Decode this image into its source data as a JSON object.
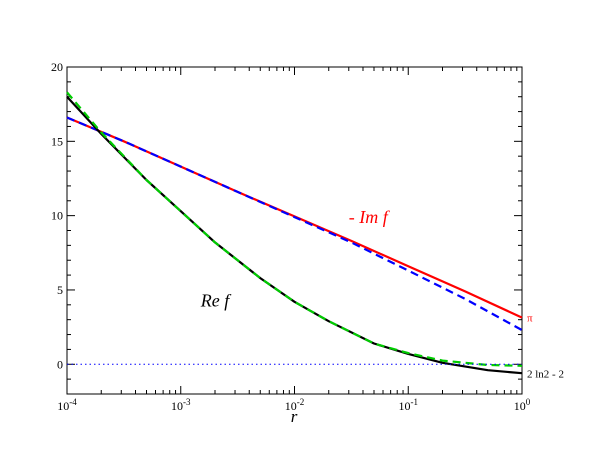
{
  "chart_data": {
    "type": "line",
    "xscale": "log",
    "xlim": [
      0.0001,
      1
    ],
    "ylim": [
      -2,
      20
    ],
    "xlabel": "r",
    "ylabel": "",
    "grid": false,
    "x_tick_labels": [
      {
        "base": "10",
        "exp": "-4",
        "value": 0.0001
      },
      {
        "base": "10",
        "exp": "-3",
        "value": 0.001
      },
      {
        "base": "10",
        "exp": "-2",
        "value": 0.01
      },
      {
        "base": "10",
        "exp": "-1",
        "value": 0.1
      },
      {
        "base": "10",
        "exp": "0",
        "value": 1
      }
    ],
    "y_tick_labels": [
      {
        "text": "0",
        "value": 0
      },
      {
        "text": "5",
        "value": 5
      },
      {
        "text": "10",
        "value": 10
      },
      {
        "text": "15",
        "value": 15
      },
      {
        "text": "20",
        "value": 20
      }
    ],
    "series": [
      {
        "name": "- Im f",
        "color": "#ff0000",
        "style": "solid",
        "x": [
          0.0001,
          0.000316,
          0.001,
          0.00316,
          0.01,
          0.0316,
          0.1,
          0.316,
          1
        ],
        "y": [
          16.6,
          15.0,
          13.3,
          11.6,
          9.95,
          8.3,
          6.6,
          4.9,
          3.14
        ]
      },
      {
        "name": "",
        "color": "#0000ff",
        "style": "dashed",
        "x": [
          0.0001,
          0.000316,
          0.001,
          0.00316,
          0.01,
          0.0316,
          0.1,
          0.316,
          1
        ],
        "y": [
          16.6,
          15.0,
          13.3,
          11.6,
          9.9,
          8.2,
          6.3,
          4.4,
          2.3
        ]
      },
      {
        "name": "Re f",
        "color": "#000000",
        "style": "solid",
        "x": [
          0.0001,
          0.0002,
          0.0005,
          0.001,
          0.002,
          0.005,
          0.01,
          0.02,
          0.05,
          0.1,
          0.2,
          0.5,
          1
        ],
        "y": [
          18.0,
          15.5,
          12.4,
          10.3,
          8.2,
          5.8,
          4.2,
          2.9,
          1.4,
          0.7,
          0.1,
          -0.4,
          -0.6
        ]
      },
      {
        "name": "",
        "color": "#00cc00",
        "style": "dashed",
        "x": [
          0.0001,
          0.0002,
          0.0005,
          0.001,
          0.002,
          0.005,
          0.01,
          0.02,
          0.05,
          0.1,
          0.2,
          0.5,
          1
        ],
        "y": [
          18.3,
          15.6,
          12.4,
          10.3,
          8.2,
          5.8,
          4.2,
          2.9,
          1.4,
          0.75,
          0.25,
          -0.05,
          -0.1
        ]
      },
      {
        "name": "",
        "color": "#0000ff",
        "style": "dotted",
        "x": [
          0.0001,
          1
        ],
        "y": [
          0,
          0
        ]
      }
    ],
    "annotations": [
      {
        "text": "- Im f",
        "color": "#ff0000",
        "x": 0.03,
        "y": 9.5
      },
      {
        "text": "Re f",
        "color": "#000000",
        "x": 0.0015,
        "y": 3.9
      },
      {
        "text": "π",
        "color": "#ff0000",
        "x": 1,
        "y": 3.14
      },
      {
        "text": "2 ln2 - 2",
        "color": "#000000",
        "x": 1,
        "y": -0.61
      }
    ]
  }
}
